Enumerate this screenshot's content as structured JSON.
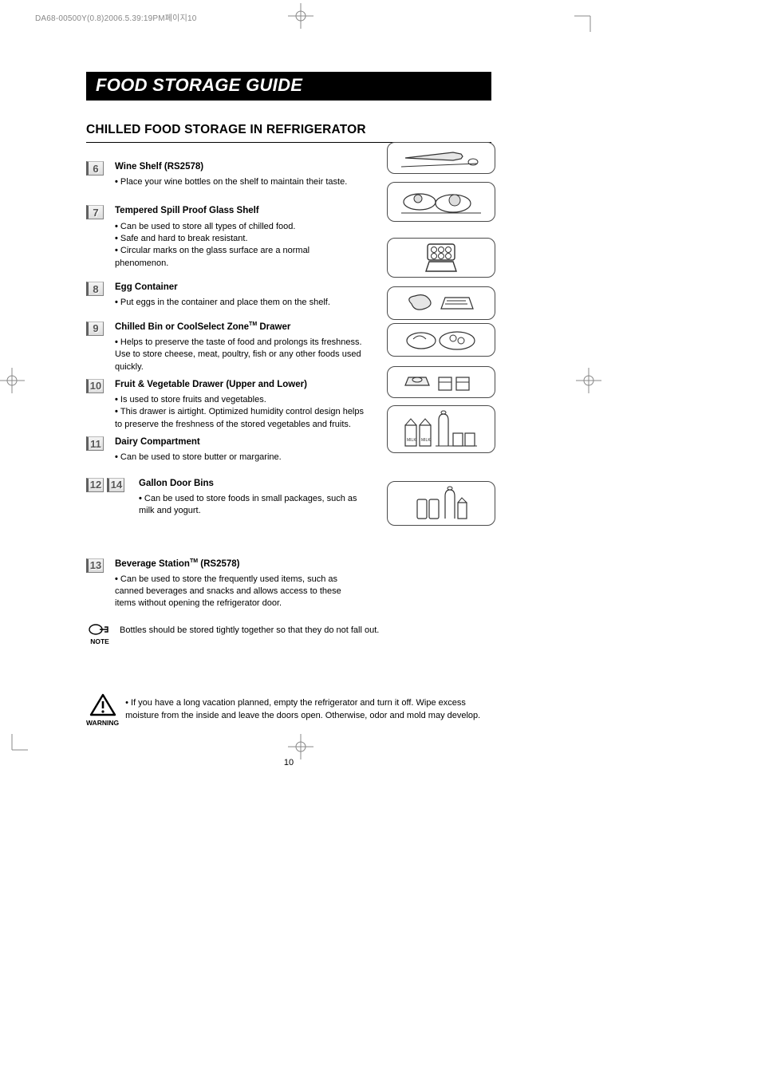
{
  "headerLine": "DA68-00500Y(0.8)2006.5.39:19PM페이지10",
  "titleBar": "FOOD STORAGE GUIDE",
  "sectionTitle": "CHILLED FOOD STORAGE IN REFRIGERATOR",
  "items": [
    {
      "numbers": [
        "6"
      ],
      "title": "Wine Shelf (RS2578)",
      "bullets": [
        "Place your wine bottles on the shelf to maintain their taste."
      ]
    },
    {
      "numbers": [
        "7"
      ],
      "title": "Tempered Spill Proof Glass Shelf",
      "bullets": [
        "Can be used to store all types of chilled food.",
        "Safe and hard to break resistant.",
        "Circular marks on the glass surface are a normal phenomenon."
      ]
    },
    {
      "numbers": [
        "8"
      ],
      "title": "Egg Container",
      "bullets": [
        "Put eggs in the container and place them on the shelf."
      ]
    },
    {
      "numbers": [
        "9"
      ],
      "title": "Chilled Bin or CoolSelect Zone™ Drawer",
      "tmAfter": "CoolSelect Zone",
      "bullets": [
        "Helps to preserve the taste of food and prolongs its freshness. Use to store cheese, meat, poultry, fish or any other foods used quickly."
      ]
    },
    {
      "numbers": [
        "10"
      ],
      "title": "Fruit & Vegetable Drawer (Upper and Lower)",
      "bullets": [
        "Is used to store fruits and vegetables.",
        "This drawer is airtight. Optimized humidity control design helps to preserve the freshness of the stored vegetables and fruits."
      ]
    },
    {
      "numbers": [
        "11"
      ],
      "title": "Dairy Compartment",
      "bullets": [
        "Can be used to store butter or margarine."
      ]
    },
    {
      "numbers": [
        "12",
        "14"
      ],
      "title": "Gallon Door Bins",
      "bullets": [
        "Can be used to store foods in small packages, such as milk and yogurt."
      ]
    },
    {
      "numbers": [
        "13"
      ],
      "title": "Beverage Station™ (RS2578)",
      "bullets": [
        "Can be used to store the frequently used items, such as canned beverages and snacks and allows access to these items without opening the refrigerator door."
      ]
    }
  ],
  "note": {
    "label": "NOTE",
    "text": "Bottles should be stored tightly together so that they do not fall out."
  },
  "warning": {
    "label": "WARNING",
    "text": "If you have a long vacation planned, empty the refrigerator and turn it off. Wipe excess moisture from the inside and leave the doors open. Otherwise, odor and mold may develop."
  },
  "pageNumber": "10",
  "illusBoxHeights": [
    40,
    50,
    50,
    42,
    42,
    40,
    60,
    56
  ],
  "illusBoxTops": [
    0,
    50,
    120,
    181,
    227,
    281,
    330,
    425
  ],
  "itemMargins": [
    20,
    14,
    14,
    6,
    6,
    16,
    50,
    14
  ],
  "colors": {
    "titleBg": "#000000",
    "titleText": "#ffffff",
    "text": "#000000",
    "numBorder": "#808080",
    "illusBorder": "#4a4a4a",
    "cropmark": "#888888"
  }
}
